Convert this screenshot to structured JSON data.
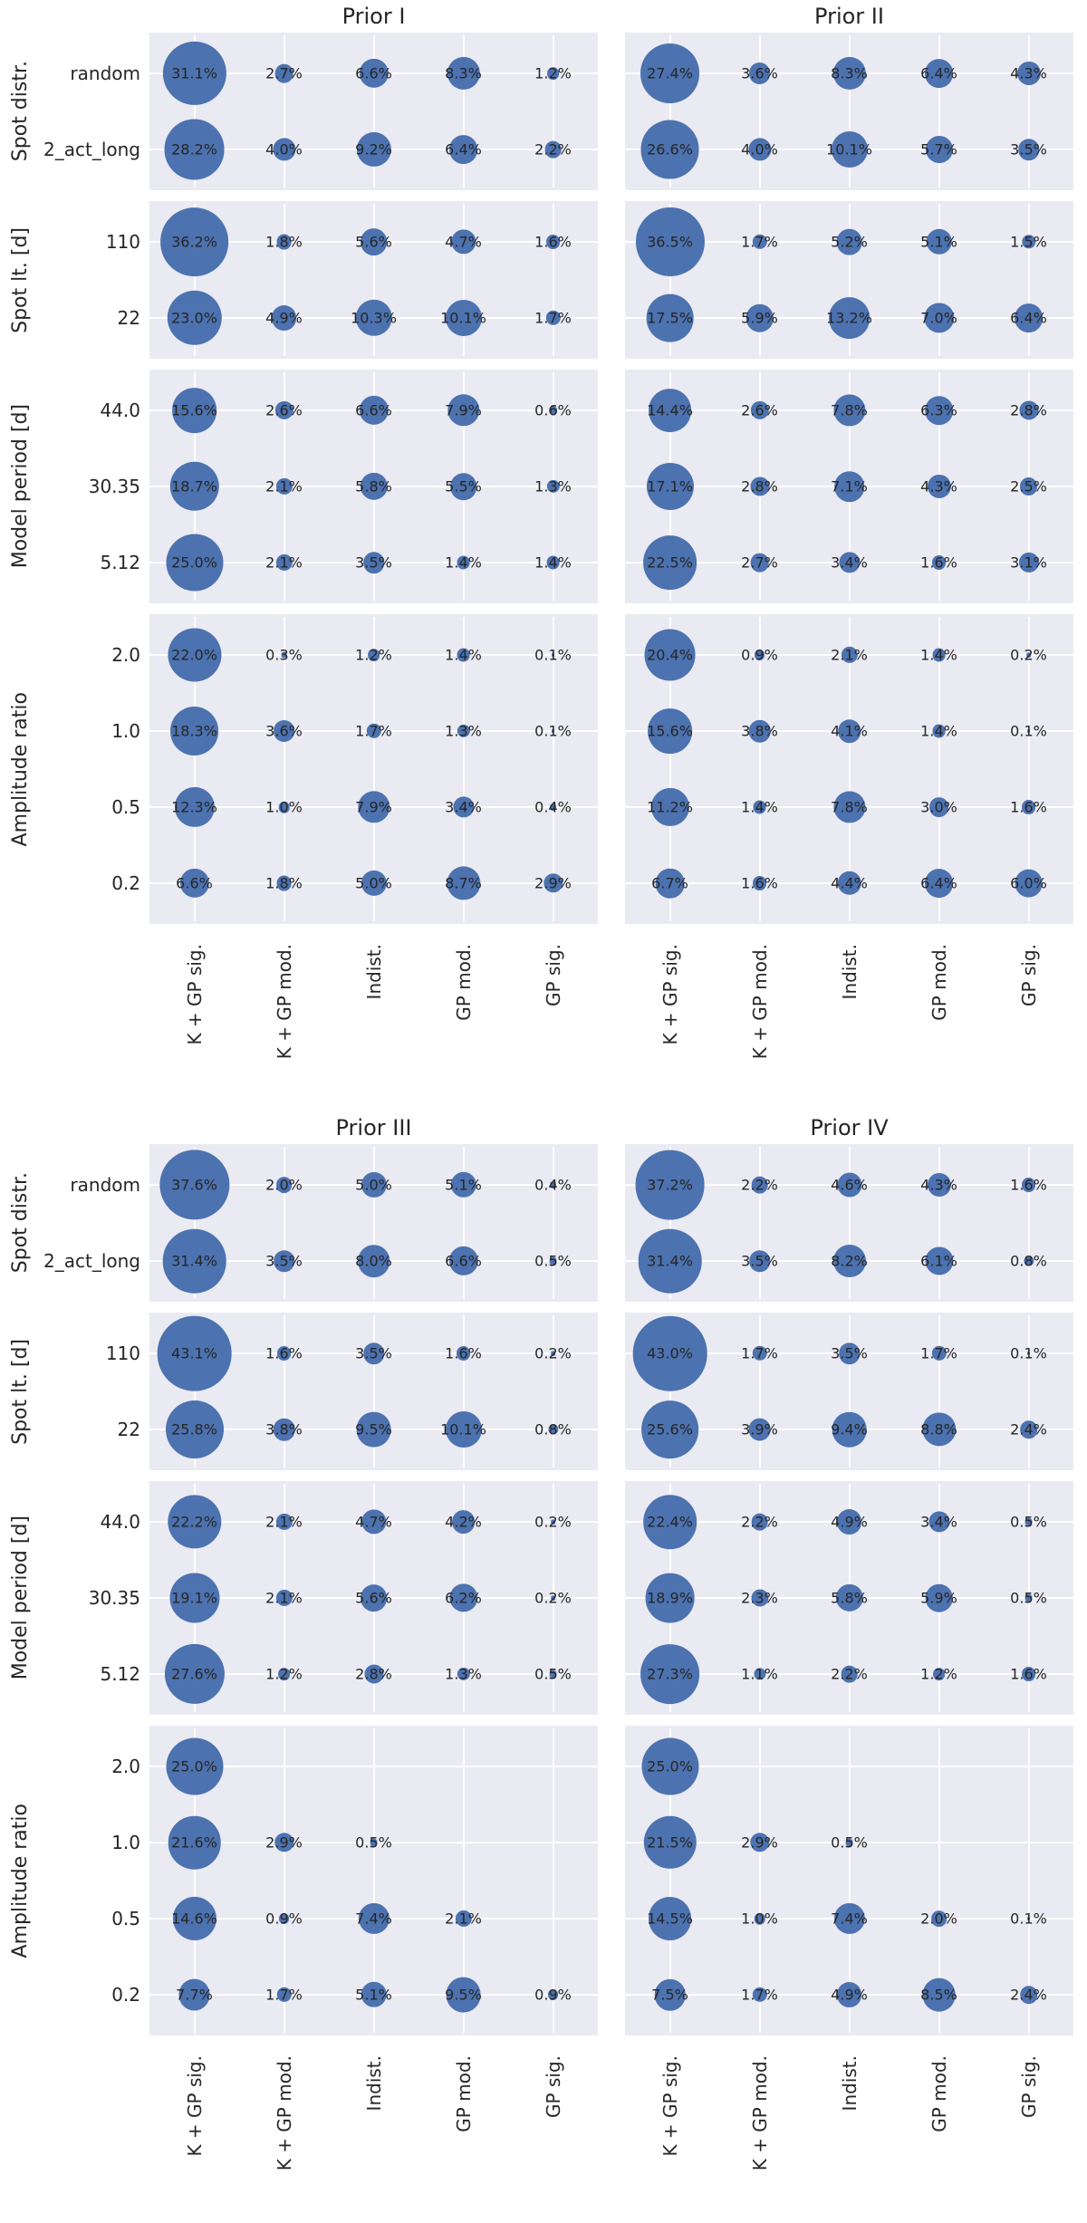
{
  "style": {
    "bubble_color": "#4c72b0",
    "panel_bg": "#eaeaf2",
    "grid_color": "#ffffff",
    "text_color": "#262626",
    "bubble_scale": 6.3
  },
  "value_suffix": "%",
  "columns": [
    "K + GP sig.",
    "K + GP mod.",
    "Indist.",
    "GP mod.",
    "GP sig."
  ],
  "chart_data": [
    {
      "type": "scatter",
      "variant": "bubble-matrix",
      "title": "Prior I",
      "value_unit": "%",
      "columns": [
        "K + GP sig.",
        "K + GP mod.",
        "Indist.",
        "GP mod.",
        "GP sig."
      ],
      "row_groups": [
        {
          "label": "Spot distr.",
          "rows": [
            "random",
            "2_act_long"
          ],
          "values": [
            [
              31.1,
              2.7,
              6.6,
              8.3,
              1.2
            ],
            [
              28.2,
              4.0,
              9.2,
              6.4,
              2.2
            ]
          ]
        },
        {
          "label": "Spot lt. [d]",
          "rows": [
            "110",
            "22"
          ],
          "values": [
            [
              36.2,
              1.8,
              5.6,
              4.7,
              1.6
            ],
            [
              23.0,
              4.9,
              10.3,
              10.1,
              1.7
            ]
          ]
        },
        {
          "label": "Model period [d]",
          "rows": [
            "44.0",
            "30.35",
            "5.12"
          ],
          "values": [
            [
              15.6,
              2.6,
              6.6,
              7.9,
              0.6
            ],
            [
              18.7,
              2.1,
              5.8,
              5.5,
              1.3
            ],
            [
              25.0,
              2.1,
              3.5,
              1.4,
              1.4
            ]
          ]
        },
        {
          "label": "Amplitude ratio",
          "rows": [
            "2.0",
            "1.0",
            "0.5",
            "0.2"
          ],
          "values": [
            [
              22.0,
              0.3,
              1.2,
              1.4,
              0.1
            ],
            [
              18.3,
              3.6,
              1.7,
              1.3,
              0.1
            ],
            [
              12.3,
              1.0,
              7.9,
              3.4,
              0.4
            ],
            [
              6.6,
              1.8,
              5.0,
              8.7,
              2.9
            ]
          ]
        }
      ]
    },
    {
      "type": "scatter",
      "variant": "bubble-matrix",
      "title": "Prior II",
      "value_unit": "%",
      "columns": [
        "K + GP sig.",
        "K + GP mod.",
        "Indist.",
        "GP mod.",
        "GP sig."
      ],
      "row_groups": [
        {
          "label": "Spot distr.",
          "rows": [
            "random",
            "2_act_long"
          ],
          "values": [
            [
              27.4,
              3.6,
              8.3,
              6.4,
              4.3
            ],
            [
              26.6,
              4.0,
              10.1,
              5.7,
              3.5
            ]
          ]
        },
        {
          "label": "Spot lt. [d]",
          "rows": [
            "110",
            "22"
          ],
          "values": [
            [
              36.5,
              1.7,
              5.2,
              5.1,
              1.5
            ],
            [
              17.5,
              5.9,
              13.2,
              7.0,
              6.4
            ]
          ]
        },
        {
          "label": "Model period [d]",
          "rows": [
            "44.0",
            "30.35",
            "5.12"
          ],
          "values": [
            [
              14.4,
              2.6,
              7.8,
              6.3,
              2.8
            ],
            [
              17.1,
              2.8,
              7.1,
              4.3,
              2.5
            ],
            [
              22.5,
              2.7,
              3.4,
              1.6,
              3.1
            ]
          ]
        },
        {
          "label": "Amplitude ratio",
          "rows": [
            "2.0",
            "1.0",
            "0.5",
            "0.2"
          ],
          "values": [
            [
              20.4,
              0.9,
              2.1,
              1.4,
              0.2
            ],
            [
              15.6,
              3.8,
              4.1,
              1.4,
              0.1
            ],
            [
              11.2,
              1.4,
              7.8,
              3.0,
              1.6
            ],
            [
              6.7,
              1.6,
              4.4,
              6.4,
              6.0
            ]
          ]
        }
      ]
    },
    {
      "type": "scatter",
      "variant": "bubble-matrix",
      "title": "Prior III",
      "value_unit": "%",
      "columns": [
        "K + GP sig.",
        "K + GP mod.",
        "Indist.",
        "GP mod.",
        "GP sig."
      ],
      "row_groups": [
        {
          "label": "Spot distr.",
          "rows": [
            "random",
            "2_act_long"
          ],
          "values": [
            [
              37.6,
              2.0,
              5.0,
              5.1,
              0.4
            ],
            [
              31.4,
              3.5,
              8.0,
              6.6,
              0.5
            ]
          ]
        },
        {
          "label": "Spot lt. [d]",
          "rows": [
            "110",
            "22"
          ],
          "values": [
            [
              43.1,
              1.6,
              3.5,
              1.6,
              0.2
            ],
            [
              25.8,
              3.8,
              9.5,
              10.1,
              0.8
            ]
          ]
        },
        {
          "label": "Model period [d]",
          "rows": [
            "44.0",
            "30.35",
            "5.12"
          ],
          "values": [
            [
              22.2,
              2.1,
              4.7,
              4.2,
              0.2
            ],
            [
              19.1,
              2.1,
              5.6,
              6.2,
              0.2
            ],
            [
              27.6,
              1.2,
              2.8,
              1.3,
              0.5
            ]
          ]
        },
        {
          "label": "Amplitude ratio",
          "rows": [
            "2.0",
            "1.0",
            "0.5",
            "0.2"
          ],
          "values": [
            [
              25.0,
              null,
              null,
              null,
              null
            ],
            [
              21.6,
              2.9,
              0.5,
              null,
              null
            ],
            [
              14.6,
              0.9,
              7.4,
              2.1,
              null
            ],
            [
              7.7,
              1.7,
              5.1,
              9.5,
              0.9
            ]
          ]
        }
      ]
    },
    {
      "type": "scatter",
      "variant": "bubble-matrix",
      "title": "Prior IV",
      "value_unit": "%",
      "columns": [
        "K + GP sig.",
        "K + GP mod.",
        "Indist.",
        "GP mod.",
        "GP sig."
      ],
      "row_groups": [
        {
          "label": "Spot distr.",
          "rows": [
            "random",
            "2_act_long"
          ],
          "values": [
            [
              37.2,
              2.2,
              4.6,
              4.3,
              1.6
            ],
            [
              31.4,
              3.5,
              8.2,
              6.1,
              0.8
            ]
          ]
        },
        {
          "label": "Spot lt. [d]",
          "rows": [
            "110",
            "22"
          ],
          "values": [
            [
              43.0,
              1.7,
              3.5,
              1.7,
              0.1
            ],
            [
              25.6,
              3.9,
              9.4,
              8.8,
              2.4
            ]
          ]
        },
        {
          "label": "Model period [d]",
          "rows": [
            "44.0",
            "30.35",
            "5.12"
          ],
          "values": [
            [
              22.4,
              2.2,
              4.9,
              3.4,
              0.5
            ],
            [
              18.9,
              2.3,
              5.8,
              5.9,
              0.5
            ],
            [
              27.3,
              1.1,
              2.2,
              1.2,
              1.6
            ]
          ]
        },
        {
          "label": "Amplitude ratio",
          "rows": [
            "2.0",
            "1.0",
            "0.5",
            "0.2"
          ],
          "values": [
            [
              25.0,
              null,
              null,
              null,
              null
            ],
            [
              21.5,
              2.9,
              0.5,
              null,
              null
            ],
            [
              14.5,
              1.0,
              7.4,
              2.0,
              0.1
            ],
            [
              7.5,
              1.7,
              4.9,
              8.5,
              2.4
            ]
          ]
        }
      ]
    }
  ]
}
